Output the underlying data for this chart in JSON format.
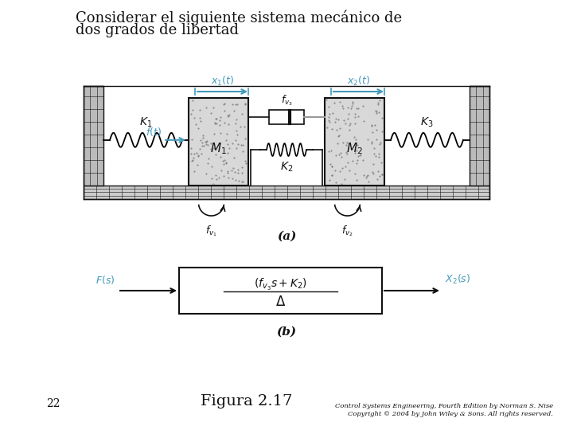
{
  "title_line1": "Considerar el siguiente sistema mecánico de",
  "title_line2": "dos grados de libertad",
  "title_fontsize": 13,
  "bg_color": "#ffffff",
  "fig_label_a": "(a)",
  "fig_label_b": "(b)",
  "figure_caption": "Figura 2.17",
  "page_number": "22",
  "copyright_line1": "Control Systems Engineering, Fourth Edition by Norman S. Nise",
  "copyright_line2": "Copyright © 2004 by John Wiley & Sons. All rights reserved.",
  "blue_color": "#4499bb",
  "black_color": "#111111",
  "brick_color": "#bbbbbb",
  "mass_face_color": "#d8d8d8",
  "mass_dot_color": "#777777",
  "floor_color": "#cccccc"
}
